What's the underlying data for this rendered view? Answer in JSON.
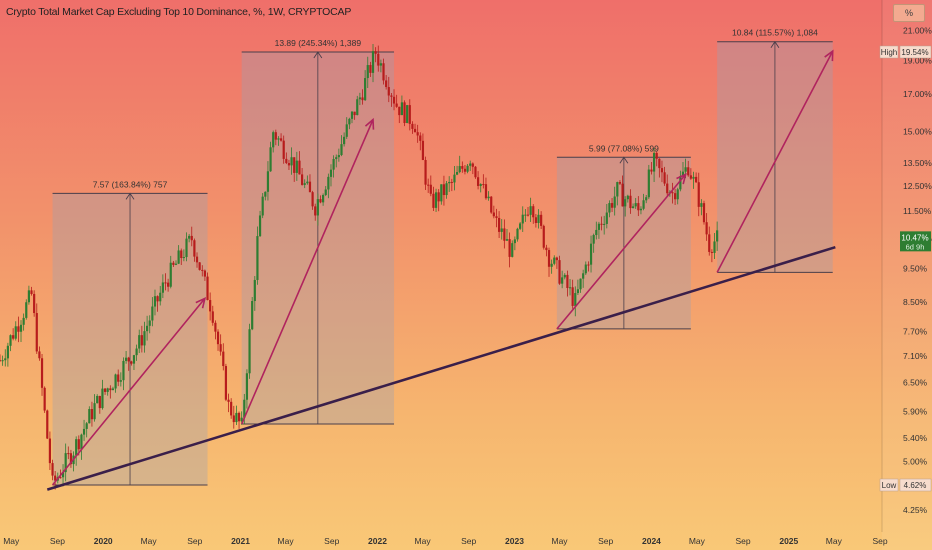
{
  "header": {
    "title": "Crypto Total Market Cap Excluding Top 10 Dominance, %, 1W, CRYPTOCAP",
    "unit_button": "%"
  },
  "colors": {
    "candle_up": "#2e7d32",
    "candle_down": "#b71c1c",
    "arrow": "#b0245e",
    "trendline": "#3a1f4a",
    "box_fill": "#9aa0b4",
    "box_line": "#4a3e4a"
  },
  "chart_data": {
    "type": "candlestick",
    "title": "Crypto Total Market Cap Excluding Top 10 Dominance, %, 1W, CRYPTOCAP",
    "y_scale": "log",
    "ylim": [
      4.0,
      22.0
    ],
    "y_ticks": [
      "21.00%",
      "19.00%",
      "17.00%",
      "15.00%",
      "13.50%",
      "12.50%",
      "11.50%",
      "10.50%",
      "9.50%",
      "8.50%",
      "7.70%",
      "7.10%",
      "6.50%",
      "5.90%",
      "5.40%",
      "5.00%",
      "4.25%"
    ],
    "x_labels": [
      "May",
      "Sep",
      "2020",
      "May",
      "Sep",
      "2021",
      "May",
      "Sep",
      "2022",
      "May",
      "Sep",
      "2023",
      "May",
      "Sep",
      "2024",
      "May",
      "Sep",
      "2025",
      "May",
      "Sep"
    ],
    "price_levels": [
      {
        "label": "High",
        "value": "19.54%"
      },
      {
        "label": "Low",
        "value": "4.62%"
      }
    ],
    "current_value": "10.47%",
    "current_sub": "6d 9h",
    "price_points": [
      {
        "date": "2019-04-01",
        "value": 7.0
      },
      {
        "date": "2019-06-24",
        "value": 8.7
      },
      {
        "date": "2019-08-19",
        "value": 4.62
      },
      {
        "date": "2019-10-14",
        "value": 5.2
      },
      {
        "date": "2019-12-09",
        "value": 6.0
      },
      {
        "date": "2020-02-10",
        "value": 6.7
      },
      {
        "date": "2020-04-06",
        "value": 7.4
      },
      {
        "date": "2020-06-15",
        "value": 9.1
      },
      {
        "date": "2020-08-24",
        "value": 10.5
      },
      {
        "date": "2020-10-19",
        "value": 8.2
      },
      {
        "date": "2020-11-30",
        "value": 6.0
      },
      {
        "date": "2021-01-04",
        "value": 5.6
      },
      {
        "date": "2021-02-15",
        "value": 10.4
      },
      {
        "date": "2021-03-29",
        "value": 15.0
      },
      {
        "date": "2021-05-17",
        "value": 13.6
      },
      {
        "date": "2021-07-19",
        "value": 11.7
      },
      {
        "date": "2021-09-13",
        "value": 13.8
      },
      {
        "date": "2021-11-15",
        "value": 16.8
      },
      {
        "date": "2021-12-27",
        "value": 19.54
      },
      {
        "date": "2022-02-21",
        "value": 16.4
      },
      {
        "date": "2022-04-11",
        "value": 15.4
      },
      {
        "date": "2022-05-23",
        "value": 11.8
      },
      {
        "date": "2022-07-18",
        "value": 12.6
      },
      {
        "date": "2022-09-05",
        "value": 13.8
      },
      {
        "date": "2022-11-07",
        "value": 11.2
      },
      {
        "date": "2022-12-26",
        "value": 10.0
      },
      {
        "date": "2023-02-13",
        "value": 12.0
      },
      {
        "date": "2023-04-03",
        "value": 9.9
      },
      {
        "date": "2023-06-12",
        "value": 8.5
      },
      {
        "date": "2023-08-07",
        "value": 10.8
      },
      {
        "date": "2023-10-02",
        "value": 12.3
      },
      {
        "date": "2023-11-27",
        "value": 11.5
      },
      {
        "date": "2024-01-08",
        "value": 13.5
      },
      {
        "date": "2024-02-26",
        "value": 12.2
      },
      {
        "date": "2024-04-08",
        "value": 13.4
      },
      {
        "date": "2024-05-06",
        "value": 12.0
      },
      {
        "date": "2024-06-03",
        "value": 10.3
      },
      {
        "date": "2024-06-24",
        "value": 10.47
      }
    ],
    "trendline": {
      "from": {
        "date": "2019-08-05",
        "value": 4.55
      },
      "to": {
        "date": "2025-05-05",
        "value": 10.2
      }
    },
    "measure_boxes": [
      {
        "label": "7.57 (163.84%) 757",
        "from": {
          "date": "2019-08-19",
          "value": 4.62
        },
        "to": {
          "date": "2020-10-05",
          "value": 12.2
        }
      },
      {
        "label": "13.89 (245.34%) 1,389",
        "from": {
          "date": "2021-01-04",
          "value": 5.66
        },
        "to": {
          "date": "2022-02-14",
          "value": 19.54
        }
      },
      {
        "label": "5.99 (77.08%) 599",
        "from": {
          "date": "2023-04-24",
          "value": 7.77
        },
        "to": {
          "date": "2024-04-15",
          "value": 13.76
        }
      },
      {
        "label": "10.84 (115.57%) 1,084",
        "from": {
          "date": "2024-06-24",
          "value": 9.38
        },
        "to": {
          "date": "2025-04-28",
          "value": 20.22
        }
      }
    ],
    "arrows": [
      {
        "from": {
          "date": "2019-08-19",
          "value": 4.62
        },
        "to": {
          "date": "2020-09-28",
          "value": 8.6
        }
      },
      {
        "from": {
          "date": "2021-01-04",
          "value": 5.66
        },
        "to": {
          "date": "2021-12-20",
          "value": 15.6
        }
      },
      {
        "from": {
          "date": "2023-04-24",
          "value": 7.77
        },
        "to": {
          "date": "2024-04-01",
          "value": 13.0
        }
      },
      {
        "from": {
          "date": "2024-06-24",
          "value": 9.38
        },
        "to": {
          "date": "2025-04-28",
          "value": 19.6
        }
      }
    ]
  }
}
